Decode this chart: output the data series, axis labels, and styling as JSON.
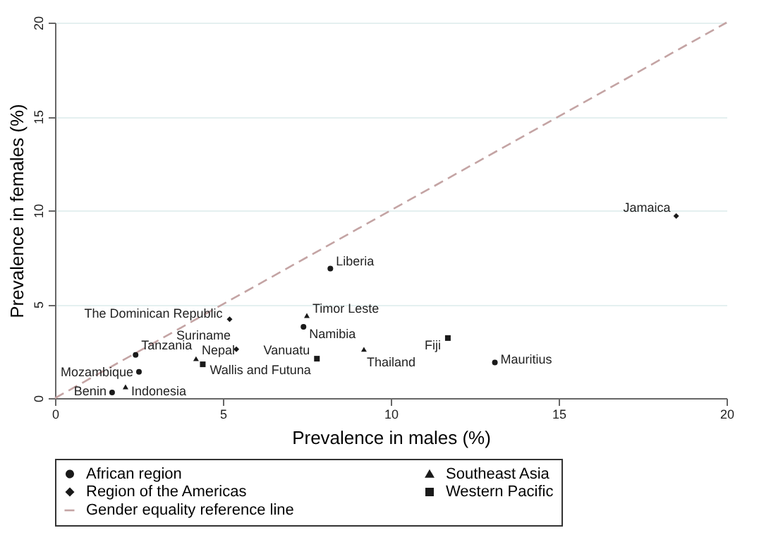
{
  "chart_data": {
    "type": "scatter",
    "xlabel": "Prevalence in males (%)",
    "ylabel": "Prevalence in females (%)",
    "xlim": [
      0,
      20
    ],
    "ylim": [
      0,
      20
    ],
    "xticks": [
      0,
      5,
      10,
      15,
      20
    ],
    "yticks": [
      0,
      5,
      10,
      15,
      20
    ],
    "grid": "y",
    "legend": "bottom",
    "series": [
      {
        "name": "African region",
        "color": "#1a1a1a",
        "marker": "circle",
        "x": [
          8.2,
          7.4,
          13.1,
          2.4,
          1.7,
          2.5
        ],
        "values": [
          6.9,
          3.8,
          1.9,
          2.3,
          0.3,
          1.4
        ]
      },
      {
        "name": "Southeast Asia",
        "color": "#1a1a1a",
        "marker": "triangle",
        "x": [
          7.5,
          9.2,
          4.2,
          2.1
        ],
        "values": [
          4.4,
          2.6,
          2.1,
          0.6
        ]
      },
      {
        "name": "Region of the Americas",
        "color": "#1a1a1a",
        "marker": "diamond",
        "x": [
          5.2,
          5.4,
          18.5
        ],
        "values": [
          4.2,
          2.6,
          9.7
        ]
      },
      {
        "name": "Western Pacific",
        "color": "#1a1a1a",
        "marker": "square",
        "x": [
          7.8,
          11.7,
          4.4
        ],
        "values": [
          2.1,
          3.2,
          1.8
        ]
      },
      {
        "name": "Gender equality reference line",
        "type": "line",
        "line_style": "dashed",
        "color": "#c4a4a4",
        "x": [
          0,
          20
        ],
        "values": [
          0,
          20
        ]
      }
    ],
    "annotations": [
      {
        "text": "Liberia",
        "x": 8.2,
        "y": 6.9
      },
      {
        "text": "Namibia",
        "x": 7.4,
        "y": 3.8
      },
      {
        "text": "Mauritius",
        "x": 13.1,
        "y": 1.9
      },
      {
        "text": "Tanzania",
        "x": 2.4,
        "y": 2.3
      },
      {
        "text": "Benin",
        "x": 1.7,
        "y": 0.3
      },
      {
        "text": "Mozambique",
        "x": 2.5,
        "y": 1.4
      },
      {
        "text": "Timor Leste",
        "x": 7.5,
        "y": 4.4
      },
      {
        "text": "Thailand",
        "x": 9.2,
        "y": 2.6
      },
      {
        "text": "Nepal",
        "x": 4.2,
        "y": 2.1
      },
      {
        "text": "Indonesia",
        "x": 2.1,
        "y": 0.6
      },
      {
        "text": "The Dominican Republic",
        "x": 5.2,
        "y": 4.2
      },
      {
        "text": "Suriname",
        "x": 5.4,
        "y": 2.6
      },
      {
        "text": "Jamaica",
        "x": 18.5,
        "y": 9.7
      },
      {
        "text": "Vanuatu",
        "x": 7.8,
        "y": 2.1
      },
      {
        "text": "Fiji",
        "x": 11.7,
        "y": 3.2
      },
      {
        "text": "Wallis and Futuna",
        "x": 4.4,
        "y": 1.8
      }
    ]
  }
}
